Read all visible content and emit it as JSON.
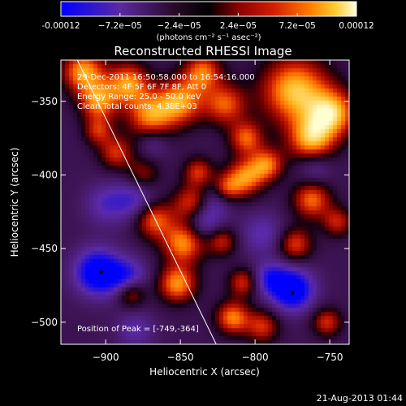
{
  "colorbar": {
    "tick_labels": [
      "-0.00012",
      "−7.2e−05",
      "−2.4e−05",
      "2.4e−05",
      "7.2e−05",
      "0.00012"
    ],
    "tick_values": [
      -0.00012,
      -7.2e-05,
      -2.4e-05,
      2.4e-05,
      7.2e-05,
      0.00012
    ],
    "unit_label": "(photons cm⁻² s⁻¹ asec⁻²)",
    "range": [
      -0.00012,
      0.00012
    ],
    "colormap": [
      "#0000ff",
      "#5a2aa0",
      "#2a0a2a",
      "#000000",
      "#8a0000",
      "#d21e00",
      "#ff7a00",
      "#ffcc33",
      "#ffffe0"
    ]
  },
  "image_info": {
    "time_range": "29-Dec-2011 16:50:58.000 to 16:54:16.000",
    "detectors": "Detectors: 4F 5F 6F 7F 8F, Att 0",
    "energy_range": "Energy Range: 25.0 - 50.0 keV",
    "clean": "Clean    Total counts: 4.38E+03",
    "peak_position": "Position of Peak = [-749,-364]"
  },
  "footer": {
    "date_stamp": "21-Aug-2013 01:44"
  },
  "chart_data": {
    "type": "heatmap",
    "title": "Reconstructed RHESSI Image",
    "xlabel": "Heliocentric X (arcsec)",
    "ylabel": "Heliocentric Y (arcsec)",
    "xlim": [
      -930,
      -737
    ],
    "ylim": [
      -515,
      -322
    ],
    "x_ticks": [
      -900,
      -850,
      -800,
      -750
    ],
    "y_ticks": [
      -350,
      -400,
      -450,
      -500
    ],
    "x_tick_labels": [
      "−900",
      "−850",
      "−800",
      "−750"
    ],
    "y_tick_labels": [
      "−350",
      "−400",
      "−450",
      "−500"
    ],
    "limb_line": [
      [
        -919,
        -322
      ],
      [
        -826,
        -515
      ]
    ],
    "peak": [
      -749,
      -364
    ],
    "markers": [
      [
        -903,
        -466
      ],
      [
        -775,
        -480
      ]
    ],
    "features": [
      {
        "x": -773,
        "y": -343,
        "a": 1.0,
        "s": 16
      },
      {
        "x": -762,
        "y": -376,
        "a": 0.9,
        "s": 11
      },
      {
        "x": -748,
        "y": -358,
        "a": 0.9,
        "s": 11
      },
      {
        "x": -915,
        "y": -330,
        "a": 0.9,
        "s": 10
      },
      {
        "x": -905,
        "y": -350,
        "a": 0.8,
        "s": 9
      },
      {
        "x": -885,
        "y": -338,
        "a": 0.85,
        "s": 10
      },
      {
        "x": -870,
        "y": -360,
        "a": 0.8,
        "s": 11
      },
      {
        "x": -850,
        "y": -350,
        "a": 0.85,
        "s": 11
      },
      {
        "x": -835,
        "y": -330,
        "a": 0.75,
        "s": 9
      },
      {
        "x": -820,
        "y": -352,
        "a": 0.7,
        "s": 10
      },
      {
        "x": -806,
        "y": -375,
        "a": 0.7,
        "s": 8
      },
      {
        "x": -792,
        "y": -393,
        "a": 0.75,
        "s": 8
      },
      {
        "x": -807,
        "y": -402,
        "a": 0.8,
        "s": 9
      },
      {
        "x": -820,
        "y": -410,
        "a": 0.7,
        "s": 7
      },
      {
        "x": -893,
        "y": -385,
        "a": 0.6,
        "s": 8
      },
      {
        "x": -875,
        "y": -400,
        "a": 0.45,
        "s": 8
      },
      {
        "x": -838,
        "y": -398,
        "a": 0.6,
        "s": 7
      },
      {
        "x": -842,
        "y": -420,
        "a": 0.75,
        "s": 9
      },
      {
        "x": -848,
        "y": -446,
        "a": 0.85,
        "s": 10
      },
      {
        "x": -868,
        "y": -430,
        "a": 0.75,
        "s": 9
      },
      {
        "x": -852,
        "y": -474,
        "a": 0.85,
        "s": 9
      },
      {
        "x": -883,
        "y": -480,
        "a": 0.65,
        "s": 7
      },
      {
        "x": -822,
        "y": -445,
        "a": 0.55,
        "s": 7
      },
      {
        "x": -815,
        "y": -497,
        "a": 0.8,
        "s": 8
      },
      {
        "x": -808,
        "y": -473,
        "a": 0.6,
        "s": 7
      },
      {
        "x": -795,
        "y": -503,
        "a": 0.6,
        "s": 8
      },
      {
        "x": -762,
        "y": -417,
        "a": 0.75,
        "s": 9
      },
      {
        "x": -745,
        "y": -432,
        "a": 0.55,
        "s": 7
      },
      {
        "x": -773,
        "y": -447,
        "a": 0.65,
        "s": 8
      },
      {
        "x": -752,
        "y": -500,
        "a": 0.6,
        "s": 7
      },
      {
        "x": -905,
        "y": -370,
        "a": 0.55,
        "s": 7
      },
      {
        "x": -905,
        "y": -466,
        "a": -1.0,
        "s": 11
      },
      {
        "x": -885,
        "y": -470,
        "a": -0.6,
        "s": 9
      },
      {
        "x": -775,
        "y": -478,
        "a": -1.0,
        "s": 10
      },
      {
        "x": -790,
        "y": -470,
        "a": -0.55,
        "s": 8
      },
      {
        "x": -835,
        "y": -430,
        "a": -0.6,
        "s": 9
      },
      {
        "x": -825,
        "y": -415,
        "a": -0.45,
        "s": 8
      },
      {
        "x": -880,
        "y": -417,
        "a": -0.5,
        "s": 10
      },
      {
        "x": -795,
        "y": -440,
        "a": -0.4,
        "s": 10
      },
      {
        "x": -760,
        "y": -395,
        "a": -0.35,
        "s": 8
      },
      {
        "x": -900,
        "y": -420,
        "a": -0.4,
        "s": 10
      },
      {
        "x": -880,
        "y": -505,
        "a": -0.35,
        "s": 9
      },
      {
        "x": -868,
        "y": -378,
        "a": -0.3,
        "s": 7
      }
    ]
  }
}
